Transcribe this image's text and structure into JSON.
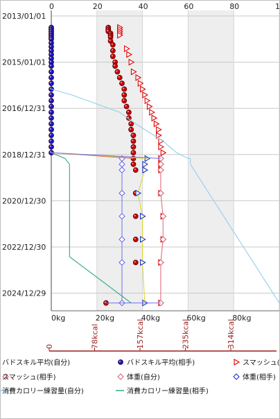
{
  "chart_data": {
    "type": "scatter",
    "y_axis": {
      "type": "date",
      "ticks": [
        "2013/01/01",
        "2015/01/01",
        "2016/12/31",
        "2018/12/31",
        "2020/12/30",
        "2022/12/30",
        "2024/12/29"
      ],
      "range": [
        "2013/01/01",
        "2025/06/30"
      ]
    },
    "x_axis_top": {
      "ticks": [
        "0",
        "20",
        "40",
        "60",
        "80",
        "100"
      ],
      "range": [
        0,
        100
      ]
    },
    "x_axis_bottom": {
      "ticks": [
        "0kg",
        "20kg",
        "40kg",
        "60kg",
        "80kg"
      ],
      "range": [
        0,
        100
      ]
    },
    "x_axis_kcal": {
      "ticks": [
        "0",
        "78kcal",
        "157kcal",
        "235kcal",
        "314kcal"
      ]
    },
    "shaded_bands": [
      [
        20,
        40
      ],
      [
        60,
        80
      ]
    ],
    "series": [
      {
        "name": "バドスキル平均(自分)",
        "color": "#1515c8",
        "marker": "circle",
        "points": [
          [
            "2013/07",
            0
          ],
          [
            "2013/08",
            0
          ],
          [
            "2013/09",
            0
          ],
          [
            "2013/10",
            0
          ],
          [
            "2013/11",
            0
          ],
          [
            "2013/12",
            0
          ],
          [
            "2014/01",
            0
          ],
          [
            "2014/03",
            0
          ],
          [
            "2014/05",
            0
          ],
          [
            "2014/07",
            0
          ],
          [
            "2014/09",
            0
          ],
          [
            "2014/11",
            0
          ],
          [
            "2015/01",
            0
          ],
          [
            "2015/03",
            0
          ],
          [
            "2015/06",
            0
          ],
          [
            "2015/09",
            0
          ],
          [
            "2015/12",
            0
          ],
          [
            "2016/03",
            0
          ],
          [
            "2016/06",
            0
          ],
          [
            "2016/09",
            0
          ],
          [
            "2016/12",
            0
          ],
          [
            "2017/03",
            0
          ],
          [
            "2017/06",
            0
          ],
          [
            "2017/09",
            0
          ],
          [
            "2017/12",
            0
          ],
          [
            "2018/03",
            0
          ],
          [
            "2018/06",
            0
          ],
          [
            "2018/09",
            0
          ],
          [
            "2018/12",
            0
          ]
        ]
      },
      {
        "name": "バドスキル平均(相手)",
        "color": "#c80000",
        "marker": "circle",
        "points": [
          [
            "2013/07",
            25
          ],
          [
            "2013/08",
            25
          ],
          [
            "2013/09",
            25
          ],
          [
            "2013/10",
            26
          ],
          [
            "2013/11",
            26
          ],
          [
            "2013/12",
            26
          ],
          [
            "2014/02",
            26
          ],
          [
            "2014/04",
            27
          ],
          [
            "2014/07",
            27
          ],
          [
            "2014/10",
            27
          ],
          [
            "2015/01",
            28
          ],
          [
            "2015/03",
            28
          ],
          [
            "2015/06",
            29
          ],
          [
            "2015/09",
            30
          ],
          [
            "2015/12",
            31
          ],
          [
            "2016/03",
            32
          ],
          [
            "2016/06",
            32
          ],
          [
            "2016/09",
            32
          ],
          [
            "2016/12",
            33
          ],
          [
            "2017/03",
            34
          ],
          [
            "2017/06",
            34
          ],
          [
            "2017/09",
            35
          ],
          [
            "2017/12",
            35
          ],
          [
            "2018/03",
            36
          ],
          [
            "2018/06",
            36
          ],
          [
            "2018/09",
            36
          ],
          [
            "2018/12",
            36
          ],
          [
            "2019/03",
            36
          ],
          [
            "2019/06",
            36
          ],
          [
            "2019/09",
            37
          ],
          [
            "2020/09",
            37
          ],
          [
            "2021/09",
            37
          ],
          [
            "2022/09",
            37
          ],
          [
            "2023/09",
            37
          ],
          [
            "2025/06",
            24
          ]
        ]
      },
      {
        "name": "スマッシュ(自分)",
        "color": "#e00000",
        "marker": "triangle-right",
        "points": [
          [
            "2013/07",
            30
          ],
          [
            "2013/08",
            30
          ],
          [
            "2013/09",
            30
          ],
          [
            "2013/10",
            30
          ],
          [
            "2013/11",
            30
          ],
          [
            "2014/06",
            33
          ],
          [
            "2014/09",
            34
          ],
          [
            "2015/01",
            35
          ],
          [
            "2015/06",
            36
          ],
          [
            "2015/09",
            38
          ],
          [
            "2015/12",
            39
          ],
          [
            "2016/03",
            40
          ],
          [
            "2016/06",
            41
          ],
          [
            "2016/09",
            42
          ],
          [
            "2016/12",
            43
          ],
          [
            "2017/03",
            44
          ],
          [
            "2017/06",
            45
          ],
          [
            "2017/09",
            46
          ],
          [
            "2017/12",
            47
          ],
          [
            "2018/03",
            47
          ],
          [
            "2018/06",
            48
          ],
          [
            "2018/09",
            48
          ],
          [
            "2018/12",
            49
          ],
          [
            "2019/03",
            48
          ],
          [
            "2019/06",
            48
          ],
          [
            "2019/09",
            48
          ],
          [
            "2020/09",
            48
          ],
          [
            "2021/09",
            49
          ],
          [
            "2022/09",
            49
          ],
          [
            "2023/09",
            48
          ],
          [
            "2025/06",
            48
          ]
        ]
      },
      {
        "name": "スマッシュ(相手)",
        "color": "#e06070",
        "marker": "diamond",
        "points": [
          [
            "2019/03",
            48
          ],
          [
            "2019/06",
            48
          ],
          [
            "2019/09",
            48
          ],
          [
            "2020/09",
            48
          ],
          [
            "2021/09",
            49
          ],
          [
            "2022/09",
            49
          ],
          [
            "2023/09",
            48
          ],
          [
            "2025/06",
            48
          ]
        ]
      },
      {
        "name": "体重(自分)",
        "color": "#6e6eea",
        "marker": "diamond",
        "points": [
          [
            "2019/03",
            31
          ],
          [
            "2019/06",
            31
          ],
          [
            "2019/09",
            31
          ],
          [
            "2020/09",
            31
          ],
          [
            "2021/09",
            31
          ],
          [
            "2022/09",
            31
          ],
          [
            "2023/09",
            31
          ],
          [
            "2025/06",
            31
          ]
        ]
      },
      {
        "name": "体重(相手)",
        "color": "#1a32c8",
        "marker": "triangle-right",
        "points": [
          [
            "2019/03",
            42
          ],
          [
            "2019/06",
            41
          ],
          [
            "2019/09",
            41
          ],
          [
            "2020/09",
            38
          ],
          [
            "2021/09",
            40
          ],
          [
            "2022/09",
            40
          ],
          [
            "2023/09",
            40
          ],
          [
            "2025/06",
            41
          ]
        ]
      },
      {
        "name": "消費カロリー練習量(自分)",
        "color": "#8fd1ea",
        "marker": "line",
        "points": [
          [
            "2016/03",
            0
          ],
          [
            "2016/06",
            9
          ],
          [
            "2017/03",
            30
          ],
          [
            "2017/09",
            37
          ],
          [
            "2018/06",
            49
          ],
          [
            "2018/12",
            55
          ],
          [
            "2019/03",
            60
          ],
          [
            "2019/03",
            61
          ],
          [
            "2019/06",
            61
          ],
          [
            "2025/06",
            100
          ]
        ]
      },
      {
        "name": "消費カロリー練習量(相手)",
        "color": "#2eaa7a",
        "marker": "line",
        "points": [
          [
            "2018/12",
            0
          ],
          [
            "2019/03",
            6
          ],
          [
            "2019/06",
            8
          ],
          [
            "2023/06",
            8
          ],
          [
            "2025/06",
            35
          ]
        ]
      }
    ]
  },
  "legend": {
    "row1": [
      "バドスキル平均(自分)",
      "バドスキル平均(相手)",
      "スマッシュ(自"
    ],
    "row2": [
      "スマッシュ(相手)",
      "体重(自分)",
      "体重(相手)"
    ],
    "row3": [
      "消費カロリー練習量(自分)",
      "消費カロリー練習量(相手)"
    ]
  }
}
